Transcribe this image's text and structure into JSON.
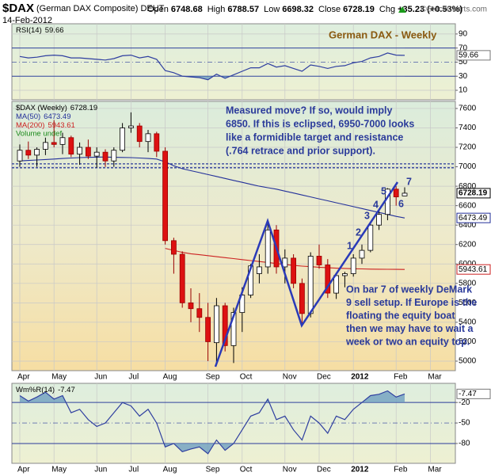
{
  "header": {
    "symbol": "$DAX",
    "name": "(German DAX Composite) DEUT",
    "date": "14-Feb-2012",
    "quote": [
      {
        "label": "Open",
        "value": 6748.68
      },
      {
        "label": "High",
        "value": 6788.57
      },
      {
        "label": "Low",
        "value": 6698.32
      },
      {
        "label": "Close",
        "value": 6728.19
      },
      {
        "label": "Chg",
        "value": "+35.23 (+0.53%)"
      }
    ],
    "watermark": "©StockCharts.com"
  },
  "chart_data": [
    {
      "type": "line",
      "title": "German DAX - Weekly",
      "series": [
        {
          "name": "RSI(14)",
          "color": "#2f3fa0",
          "values": [
            58,
            56,
            57,
            59,
            60,
            59,
            56,
            56,
            55,
            54,
            53,
            55,
            59,
            60,
            56,
            58,
            54,
            38,
            35,
            30,
            29,
            28,
            25,
            33,
            27,
            32,
            37,
            42,
            42,
            48,
            43,
            45,
            41,
            37,
            46,
            44,
            41,
            44,
            45,
            49,
            51,
            56,
            58,
            63,
            60,
            59.66,
            null,
            null,
            null,
            null
          ]
        }
      ],
      "ylim": [
        -3.5,
        104.5
      ],
      "yticks": [
        90,
        70,
        50,
        30,
        10
      ],
      "overbought": 70,
      "midline": 50,
      "oversold": 30,
      "fill_color": "#6f9fc0"
    },
    {
      "type": "candlestick",
      "categories": [
        "Apr",
        null,
        null,
        null,
        "May",
        null,
        null,
        null,
        null,
        "Jun",
        null,
        null,
        null,
        "Jul",
        null,
        null,
        null,
        "Aug",
        null,
        null,
        null,
        null,
        "Sep",
        null,
        null,
        null,
        "Oct",
        null,
        null,
        null,
        null,
        "Nov",
        null,
        null,
        null,
        "Dec",
        null,
        null,
        null,
        "2012",
        null,
        null,
        null,
        null,
        "Feb",
        null,
        null,
        null,
        "Mar",
        null
      ],
      "series": [
        {
          "name": "$DAX (Weekly)",
          "up_color": "#ffffff",
          "down_color": "#dd1111",
          "open": [
            7060,
            7170,
            7120,
            7180,
            7250,
            7230,
            7300,
            7130,
            7200,
            7110,
            7150,
            7060,
            7170,
            7400,
            7420,
            7260,
            7340,
            7160,
            6240,
            6100,
            5600,
            5540,
            5450,
            5190,
            5570,
            5160,
            5500,
            5680,
            5900,
            5970,
            6350,
            5970,
            6060,
            5800,
            5490,
            6080,
            5990,
            5700,
            5880,
            5900,
            6060,
            6140,
            6400,
            6510,
            6770,
            6700,
            null,
            null,
            null,
            null
          ],
          "high": [
            7230,
            7260,
            7200,
            7300,
            7480,
            7350,
            7320,
            7250,
            7280,
            7200,
            7180,
            7200,
            7450,
            7560,
            7450,
            7380,
            7360,
            7200,
            6270,
            6130,
            5750,
            5700,
            5600,
            5650,
            5600,
            5550,
            5760,
            6000,
            6100,
            6430,
            6400,
            6150,
            6100,
            5850,
            6120,
            6200,
            6050,
            5900,
            5920,
            6100,
            6200,
            6420,
            6560,
            6780,
            6800,
            6788.57,
            null,
            null,
            null,
            null
          ],
          "low": [
            7000,
            7080,
            7000,
            7120,
            7200,
            7130,
            7100,
            7020,
            7080,
            6990,
            7000,
            7000,
            7150,
            7350,
            7200,
            7150,
            7100,
            6200,
            5900,
            5550,
            5400,
            5300,
            5000,
            4965,
            5100,
            4980,
            5300,
            5650,
            5800,
            5900,
            5900,
            5800,
            5750,
            5370,
            5450,
            5950,
            5650,
            5640,
            5760,
            5870,
            6000,
            6120,
            6350,
            6450,
            6600,
            6698.32,
            null,
            null,
            null,
            null
          ],
          "close": [
            7170,
            7120,
            7180,
            7250,
            7230,
            7300,
            7130,
            7200,
            7110,
            7150,
            7060,
            7170,
            7400,
            7420,
            7260,
            7340,
            7160,
            6240,
            6100,
            5600,
            5540,
            5450,
            5200,
            5570,
            5160,
            5500,
            5680,
            5980,
            5970,
            6350,
            5970,
            6060,
            5800,
            5490,
            6080,
            5990,
            5700,
            5880,
            5900,
            6060,
            6140,
            6400,
            6510,
            6770,
            6690,
            6728.19,
            null,
            null,
            null,
            null
          ]
        },
        {
          "name": "MA(50)",
          "color": "#23309a",
          "values": [
            7060,
            7065,
            7070,
            7075,
            7080,
            7085,
            7090,
            7094,
            7097,
            7099,
            7100,
            7098,
            7096,
            7094,
            7090,
            7085,
            7080,
            7050,
            7010,
            6980,
            6960,
            6940,
            6920,
            6900,
            6880,
            6860,
            6840,
            6820,
            6800,
            6785,
            6770,
            6750,
            6730,
            6710,
            6690,
            6670,
            6650,
            6630,
            6610,
            6590,
            6570,
            6550,
            6530,
            6510,
            6490,
            6473.49,
            null,
            null,
            null,
            null
          ]
        },
        {
          "name": "MA(200)",
          "color": "#cc2222",
          "values": [
            null,
            null,
            null,
            null,
            null,
            null,
            null,
            null,
            null,
            null,
            null,
            null,
            null,
            null,
            null,
            null,
            null,
            6160,
            6140,
            6120,
            6105,
            6095,
            6085,
            6075,
            6065,
            6055,
            6045,
            6035,
            6025,
            6015,
            6005,
            5995,
            5985,
            5978,
            5972,
            5966,
            5961,
            5957,
            5954,
            5951,
            5949,
            5947,
            5946,
            5945,
            5944,
            5943.61,
            null,
            null,
            null,
            null
          ]
        }
      ],
      "volume_label": "Volume undef",
      "ylim": [
        4902,
        7673
      ],
      "yticks": [
        7600,
        7400,
        7200,
        7000,
        6800,
        6600,
        6400,
        6200,
        6000,
        5800,
        5600,
        5400,
        5200,
        5000
      ],
      "grid": true,
      "resistance_levels": [
        7030,
        6990
      ],
      "annotations": {
        "measured_move": [
          "Measured move? If so, would imply",
          "6850. If this is eclipsed, 6950-7000 looks",
          "like a formidible target and resistance",
          "(.764 retrace and prior support)."
        ],
        "demark": [
          "On bar 7 of weekly DeMark",
          "9 sell setup. If Europe is the",
          "floating the equity boat",
          "then we may have to wait a",
          "week or two an equity top."
        ],
        "setup_counts": [
          "1",
          "2",
          "3",
          "4",
          "5",
          "6",
          "7"
        ]
      }
    },
    {
      "type": "line",
      "series": [
        {
          "name": "Wm%R(14)",
          "color": "#2f3fa0",
          "values": [
            -10,
            -18,
            -12,
            -5,
            -15,
            -10,
            -35,
            -30,
            -45,
            -55,
            -50,
            -35,
            -20,
            -25,
            -40,
            -30,
            -50,
            -85,
            -80,
            -92,
            -88,
            -85,
            -95,
            -75,
            -90,
            -80,
            -60,
            -40,
            -35,
            -15,
            -45,
            -40,
            -60,
            -75,
            -40,
            -50,
            -65,
            -40,
            -45,
            -30,
            -20,
            -10,
            -8,
            -3,
            -12,
            -7.47,
            null,
            null,
            null,
            null
          ]
        }
      ],
      "ylim": [
        -109,
        8
      ],
      "yticks": [
        -20,
        -50,
        -80
      ],
      "overbought": -20,
      "midline": -50,
      "oversold": -80,
      "fill_color": "#6f9fc0"
    }
  ]
}
